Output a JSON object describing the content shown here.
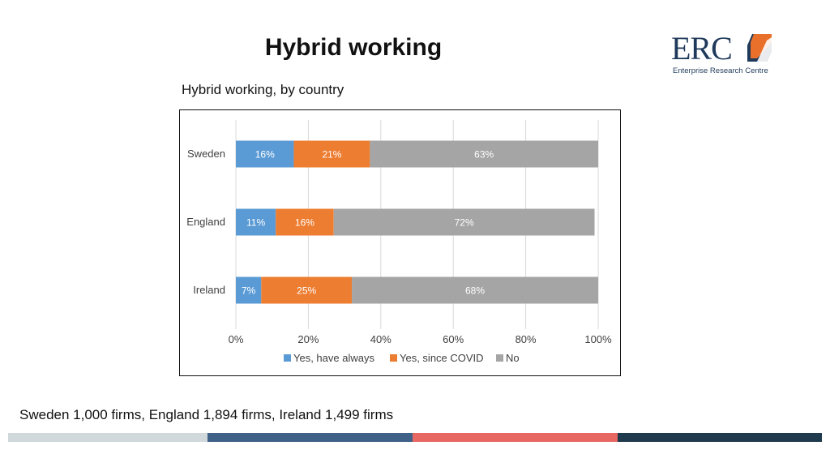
{
  "slide": {
    "title": "Hybrid working",
    "footnote": "Sweden 1,000 firms, England 1,894 firms, Ireland 1,499 firms"
  },
  "logo": {
    "text": "ERC",
    "subtitle": "Enterprise Research Centre",
    "colors": {
      "navy": "#1f3a5a",
      "orange": "#e8702a"
    }
  },
  "footer_band_colors": [
    "#d0d8dc",
    "#3f6187",
    "#e76763",
    "#1f3a4d"
  ],
  "chart_data": {
    "type": "bar",
    "orientation": "horizontal",
    "stacked": true,
    "title": "Hybrid working, by country",
    "categories": [
      "Sweden",
      "England",
      "Ireland"
    ],
    "series": [
      {
        "name": "Yes, have always",
        "color": "#5b9bd5",
        "values": [
          16,
          11,
          7
        ],
        "labels": [
          "16%",
          "11%",
          "7%"
        ]
      },
      {
        "name": "Yes, since COVID",
        "color": "#ed7d31",
        "values": [
          21,
          16,
          25
        ],
        "labels": [
          "21%",
          "16%",
          "25%"
        ]
      },
      {
        "name": "No",
        "color": "#a5a5a5",
        "values": [
          63,
          72,
          68
        ],
        "labels": [
          "63%",
          "72%",
          "68%"
        ]
      }
    ],
    "xlim": [
      0,
      100
    ],
    "xticks": [
      0,
      20,
      40,
      60,
      80,
      100
    ],
    "xtick_labels": [
      "0%",
      "20%",
      "40%",
      "60%",
      "80%",
      "100%"
    ],
    "grid": true,
    "legend": "bottom"
  }
}
